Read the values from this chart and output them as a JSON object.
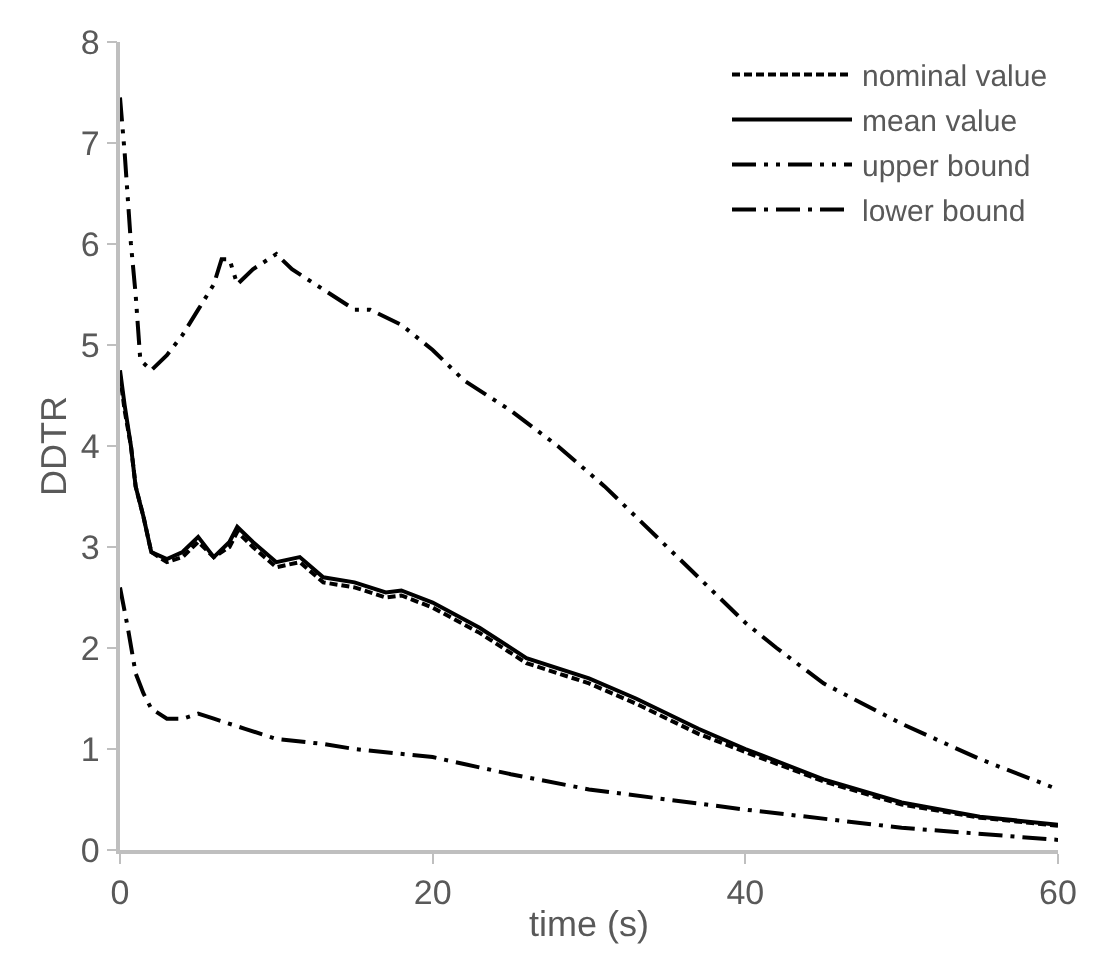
{
  "chart_data": {
    "type": "line",
    "xlabel": "time (s)",
    "ylabel": "DDTR",
    "xlim": [
      0,
      60
    ],
    "xticks": [
      0,
      20,
      40,
      60
    ],
    "ylim": [
      0,
      8
    ],
    "yticks": [
      0,
      1,
      2,
      3,
      4,
      5,
      6,
      7,
      8
    ],
    "legend": "top right",
    "marker": "none",
    "series": [
      {
        "name": "nominal value",
        "color": "#000000",
        "line_style": "dashed",
        "x": [
          0,
          0.3,
          0.7,
          1,
          1.5,
          2,
          3,
          4,
          5,
          6,
          7,
          7.5,
          8.5,
          10,
          11.5,
          13,
          15,
          17,
          18,
          20,
          23,
          26,
          30,
          33,
          37,
          40,
          45,
          50,
          55,
          60
        ],
        "values": [
          4.7,
          4.35,
          4.0,
          3.6,
          3.3,
          2.95,
          2.85,
          2.9,
          3.05,
          2.9,
          3.0,
          3.15,
          3.0,
          2.8,
          2.85,
          2.65,
          2.6,
          2.5,
          2.52,
          2.4,
          2.15,
          1.85,
          1.65,
          1.45,
          1.15,
          0.97,
          0.68,
          0.45,
          0.32,
          0.24
        ]
      },
      {
        "name": "mean value",
        "color": "#000000",
        "line_style": "solid",
        "x": [
          0,
          0.3,
          0.7,
          1,
          1.5,
          2,
          3,
          4,
          5,
          6,
          7,
          7.5,
          8.5,
          10,
          11.5,
          13,
          15,
          17,
          18,
          20,
          23,
          26,
          30,
          33,
          37,
          40,
          45,
          50,
          55,
          60
        ],
        "values": [
          4.75,
          4.4,
          4.0,
          3.6,
          3.3,
          2.95,
          2.88,
          2.95,
          3.1,
          2.9,
          3.05,
          3.2,
          3.05,
          2.85,
          2.9,
          2.7,
          2.65,
          2.55,
          2.57,
          2.45,
          2.2,
          1.9,
          1.7,
          1.5,
          1.2,
          1.0,
          0.7,
          0.47,
          0.33,
          0.25
        ]
      },
      {
        "name": "upper bound",
        "color": "#000000",
        "line_style": "dashdotdot",
        "x": [
          0,
          0.3,
          0.7,
          1,
          1.3,
          2,
          3,
          4,
          5,
          6,
          6.5,
          7,
          7.5,
          8.5,
          10,
          11,
          13,
          15,
          16,
          18,
          20,
          22,
          25,
          28,
          31,
          33,
          35,
          38,
          40,
          42,
          45,
          50,
          55,
          60
        ],
        "values": [
          7.45,
          6.9,
          6.0,
          5.5,
          4.85,
          4.75,
          4.9,
          5.1,
          5.35,
          5.6,
          5.85,
          5.85,
          5.6,
          5.75,
          5.9,
          5.75,
          5.55,
          5.35,
          5.35,
          5.2,
          4.95,
          4.65,
          4.35,
          4.0,
          3.6,
          3.3,
          3.0,
          2.55,
          2.25,
          2.0,
          1.65,
          1.25,
          0.9,
          0.6
        ]
      },
      {
        "name": "lower bound",
        "color": "#000000",
        "line_style": "dashdot",
        "x": [
          0,
          0.5,
          1,
          1.5,
          2,
          3,
          4,
          5,
          6,
          8,
          10,
          13,
          15,
          20,
          25,
          30,
          40,
          50,
          60
        ],
        "values": [
          2.6,
          2.2,
          1.75,
          1.55,
          1.4,
          1.3,
          1.3,
          1.35,
          1.3,
          1.2,
          1.1,
          1.05,
          1.0,
          0.92,
          0.75,
          0.6,
          0.4,
          0.22,
          0.1
        ]
      }
    ]
  }
}
